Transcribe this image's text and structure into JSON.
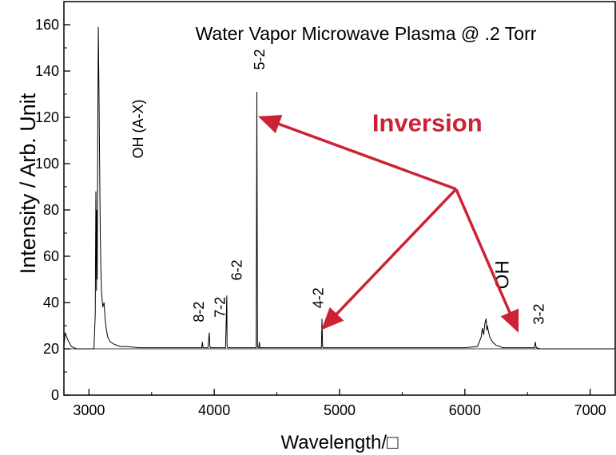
{
  "chart_data": {
    "type": "line",
    "title": "Water Vapor Microwave Plasma @ .2 Torr",
    "xlabel": "Wavelength/□",
    "ylabel": "Intensity / Arb. Unit",
    "xlim": [
      2800,
      7200
    ],
    "ylim": [
      0,
      170
    ],
    "x_ticks": [
      3000,
      4000,
      5000,
      6000,
      7000
    ],
    "y_ticks": [
      0,
      20,
      40,
      60,
      80,
      100,
      120,
      140,
      160
    ],
    "grid": false,
    "series": [
      {
        "color": "#000000",
        "x": [
          2800,
          2810,
          2830,
          2860,
          2900,
          2960,
          3020,
          3040,
          3050,
          3055,
          3060,
          3063,
          3066,
          3070,
          3075,
          3080,
          3085,
          3090,
          3095,
          3100,
          3110,
          3120,
          3130,
          3140,
          3150,
          3170,
          3200,
          3250,
          3300,
          3400,
          3500,
          3700,
          3900,
          3905,
          3910,
          3950,
          3960,
          3965,
          3970,
          4000,
          4090,
          4100,
          4102,
          4110,
          4300,
          4335,
          4340,
          4345,
          4350,
          4355,
          4360,
          4365,
          4370,
          4500,
          4855,
          4860,
          4865,
          4870,
          5000,
          5500,
          6000,
          6100,
          6130,
          6140,
          6150,
          6160,
          6170,
          6175,
          6180,
          6190,
          6200,
          6220,
          6250,
          6280,
          6300,
          6400,
          6555,
          6562,
          6570,
          6600,
          6800,
          7000,
          7200
        ],
        "y": [
          21,
          27,
          24,
          21,
          20,
          20,
          20,
          20,
          35,
          88,
          45,
          80,
          50,
          110,
          159,
          130,
          100,
          70,
          55,
          45,
          38,
          40,
          32,
          28,
          25,
          23,
          22,
          21,
          21,
          20.5,
          20.5,
          20.5,
          20.5,
          23,
          20.5,
          20.5,
          27,
          21,
          20.5,
          20.5,
          20.5,
          43,
          21,
          20.5,
          20.5,
          20.5,
          131,
          21,
          20.5,
          20.5,
          23,
          20.5,
          20.5,
          20.5,
          20.5,
          33,
          21,
          20.5,
          20.5,
          20.5,
          20.5,
          21,
          25,
          29,
          26,
          31,
          33,
          28,
          30,
          27,
          25,
          23,
          21.5,
          21,
          20.5,
          20.5,
          20.5,
          23,
          20.5,
          20,
          20,
          20,
          20
        ]
      }
    ],
    "peak_labels": [
      {
        "text": "OH (A-X)",
        "x": 3430,
        "y": 115
      },
      {
        "text": "8-2",
        "x": 3915,
        "y": 36
      },
      {
        "text": "7-2",
        "x": 4085,
        "y": 38
      },
      {
        "text": "6-2",
        "x": 4220,
        "y": 54
      },
      {
        "text": "5-2",
        "x": 4400,
        "y": 145
      },
      {
        "text": "4-2",
        "x": 4870,
        "y": 42
      },
      {
        "text": "3-2",
        "x": 6630,
        "y": 35
      }
    ],
    "annotation": {
      "text": "Inversion",
      "color": "#cc2233",
      "x": 5700,
      "y": 114,
      "origin": {
        "x": 5930,
        "y": 89
      },
      "targets": [
        {
          "x": 4370,
          "y": 120
        },
        {
          "x": 4870,
          "y": 29
        },
        {
          "x": 6420,
          "y": 28
        }
      ]
    },
    "oh_label": {
      "text": "OH",
      "x": 6350,
      "y": 52
    }
  }
}
